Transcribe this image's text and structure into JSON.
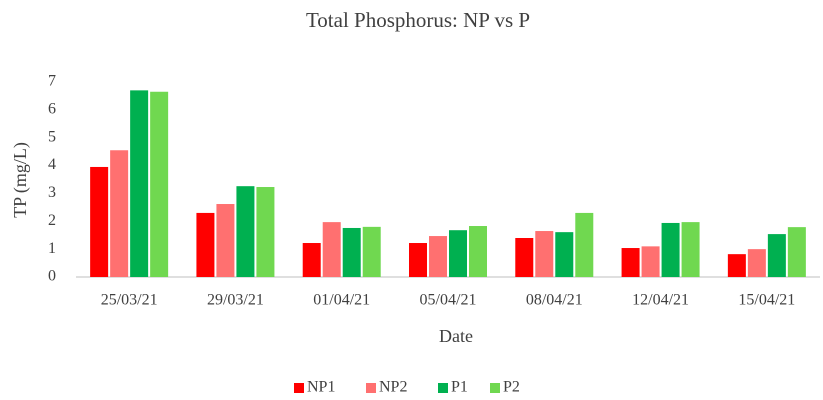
{
  "chart_data": {
    "type": "bar",
    "title": "Total Phosphorus: NP vs P",
    "x_label": "Date",
    "y_label": "TP (mg/L)",
    "categories": [
      "25/03/21",
      "29/03/21",
      "01/04/21",
      "05/04/21",
      "08/04/21",
      "12/04/21",
      "15/04/21"
    ],
    "series": [
      {
        "name": "NP1",
        "color": "#ff0000",
        "values": [
          3.95,
          2.3,
          1.22,
          1.22,
          1.4,
          1.04,
          0.82
        ]
      },
      {
        "name": "NP2",
        "color": "#ff7070",
        "values": [
          4.55,
          2.62,
          1.97,
          1.47,
          1.65,
          1.1,
          1.0
        ]
      },
      {
        "name": "P1",
        "color": "#00b050",
        "values": [
          6.7,
          3.26,
          1.76,
          1.68,
          1.61,
          1.94,
          1.54
        ]
      },
      {
        "name": "P2",
        "color": "#70d850",
        "values": [
          6.65,
          3.23,
          1.8,
          1.83,
          2.3,
          1.97,
          1.79
        ]
      }
    ],
    "ylim": [
      0,
      7
    ],
    "yticks": [
      0,
      1,
      2,
      3,
      4,
      5,
      6,
      7
    ],
    "grid": false,
    "legend": "bottom"
  }
}
